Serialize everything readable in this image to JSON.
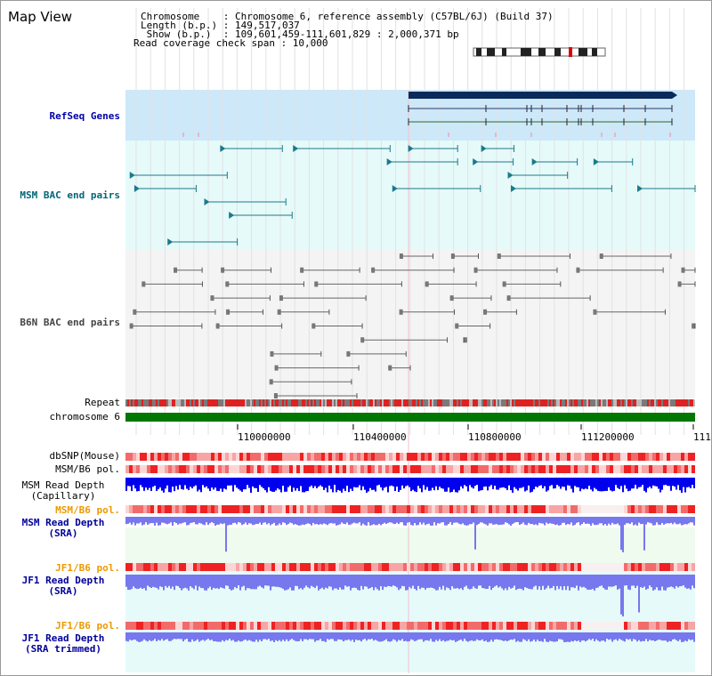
{
  "title": "Map View",
  "info": {
    "lines": [
      "Chromosome    : Chromosome 6, reference assembly (C57BL/6J) (Build 37)",
      "Length (b.p.) : 149,517,037",
      " Show (b.p.)  : 109,601,459-111,601,829 : 2,000,371 bp",
      "Read coverage check span : 10,000"
    ]
  },
  "tracks": {
    "refseq": "RefSeq Genes",
    "msm_bac": "MSM BAC end pairs",
    "b6n_bac": "B6N BAC end pairs",
    "repeat": "Repeat",
    "chromosome": "chromosome 6",
    "dbsnp": "dbSNP(Mouse)",
    "msm_b6_pol_cap": "MSM/B6 pol.",
    "msm_depth_cap": "MSM Read Depth\n(Capillary)",
    "msm_b6_pol_sra": "MSM/B6 pol.",
    "msm_depth_sra": "MSM Read Depth\n(SRA)",
    "jf1_b6_pol": "JF1/B6 pol.",
    "jf1_depth_sra": "JF1 Read Depth\n(SRA)",
    "jf1_b6_pol_trim": "JF1/B6 pol.",
    "jf1_depth_trim": "JF1 Read Depth\n(SRA trimmed)"
  },
  "axis": {
    "labels": [
      "110000000",
      "110400000",
      "110800000",
      "111200000",
      "111"
    ]
  },
  "colors": {
    "refseq_bg": "#cde8f8",
    "msm_bg": "#e6fafa",
    "gray_bg": "#f4f4f4",
    "navy": "#0a2a5a",
    "teal": "#1a7a8a",
    "repeat_red": "#dd2222",
    "chromosome_green": "#007700",
    "snp_red": "#ee3333",
    "depth_blue": "#0000ee",
    "depth_light_blue": "#7777ee",
    "orange_label": "#ee9900",
    "navy_label": "#000099",
    "teal_label": "#006677"
  }
}
